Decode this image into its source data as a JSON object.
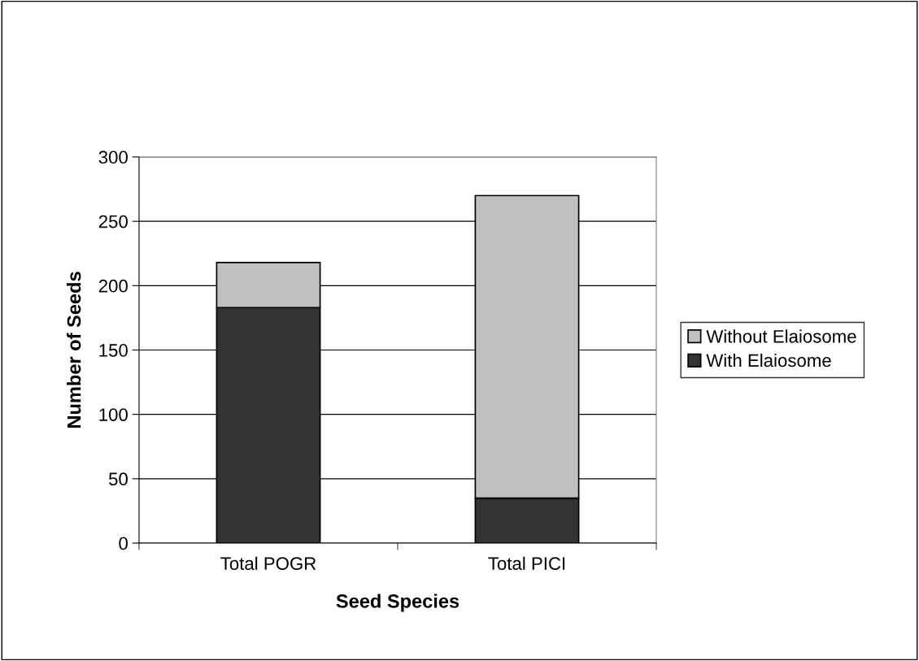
{
  "chart_data": {
    "type": "bar",
    "stacked": true,
    "xlabel": "Seed Species",
    "ylabel": "Number of Seeds",
    "categories": [
      "Total POGR",
      "Total PICI"
    ],
    "series": [
      {
        "name": "With Elaiosome",
        "color": "#333333",
        "values": [
          183,
          35
        ]
      },
      {
        "name": "Without Elaiosome",
        "color": "#c0c0c0",
        "values": [
          35,
          235
        ]
      }
    ],
    "ylim": [
      0,
      300
    ],
    "yticks": [
      0,
      50,
      100,
      150,
      200,
      250,
      300
    ],
    "grid": "y",
    "legend": "right"
  }
}
